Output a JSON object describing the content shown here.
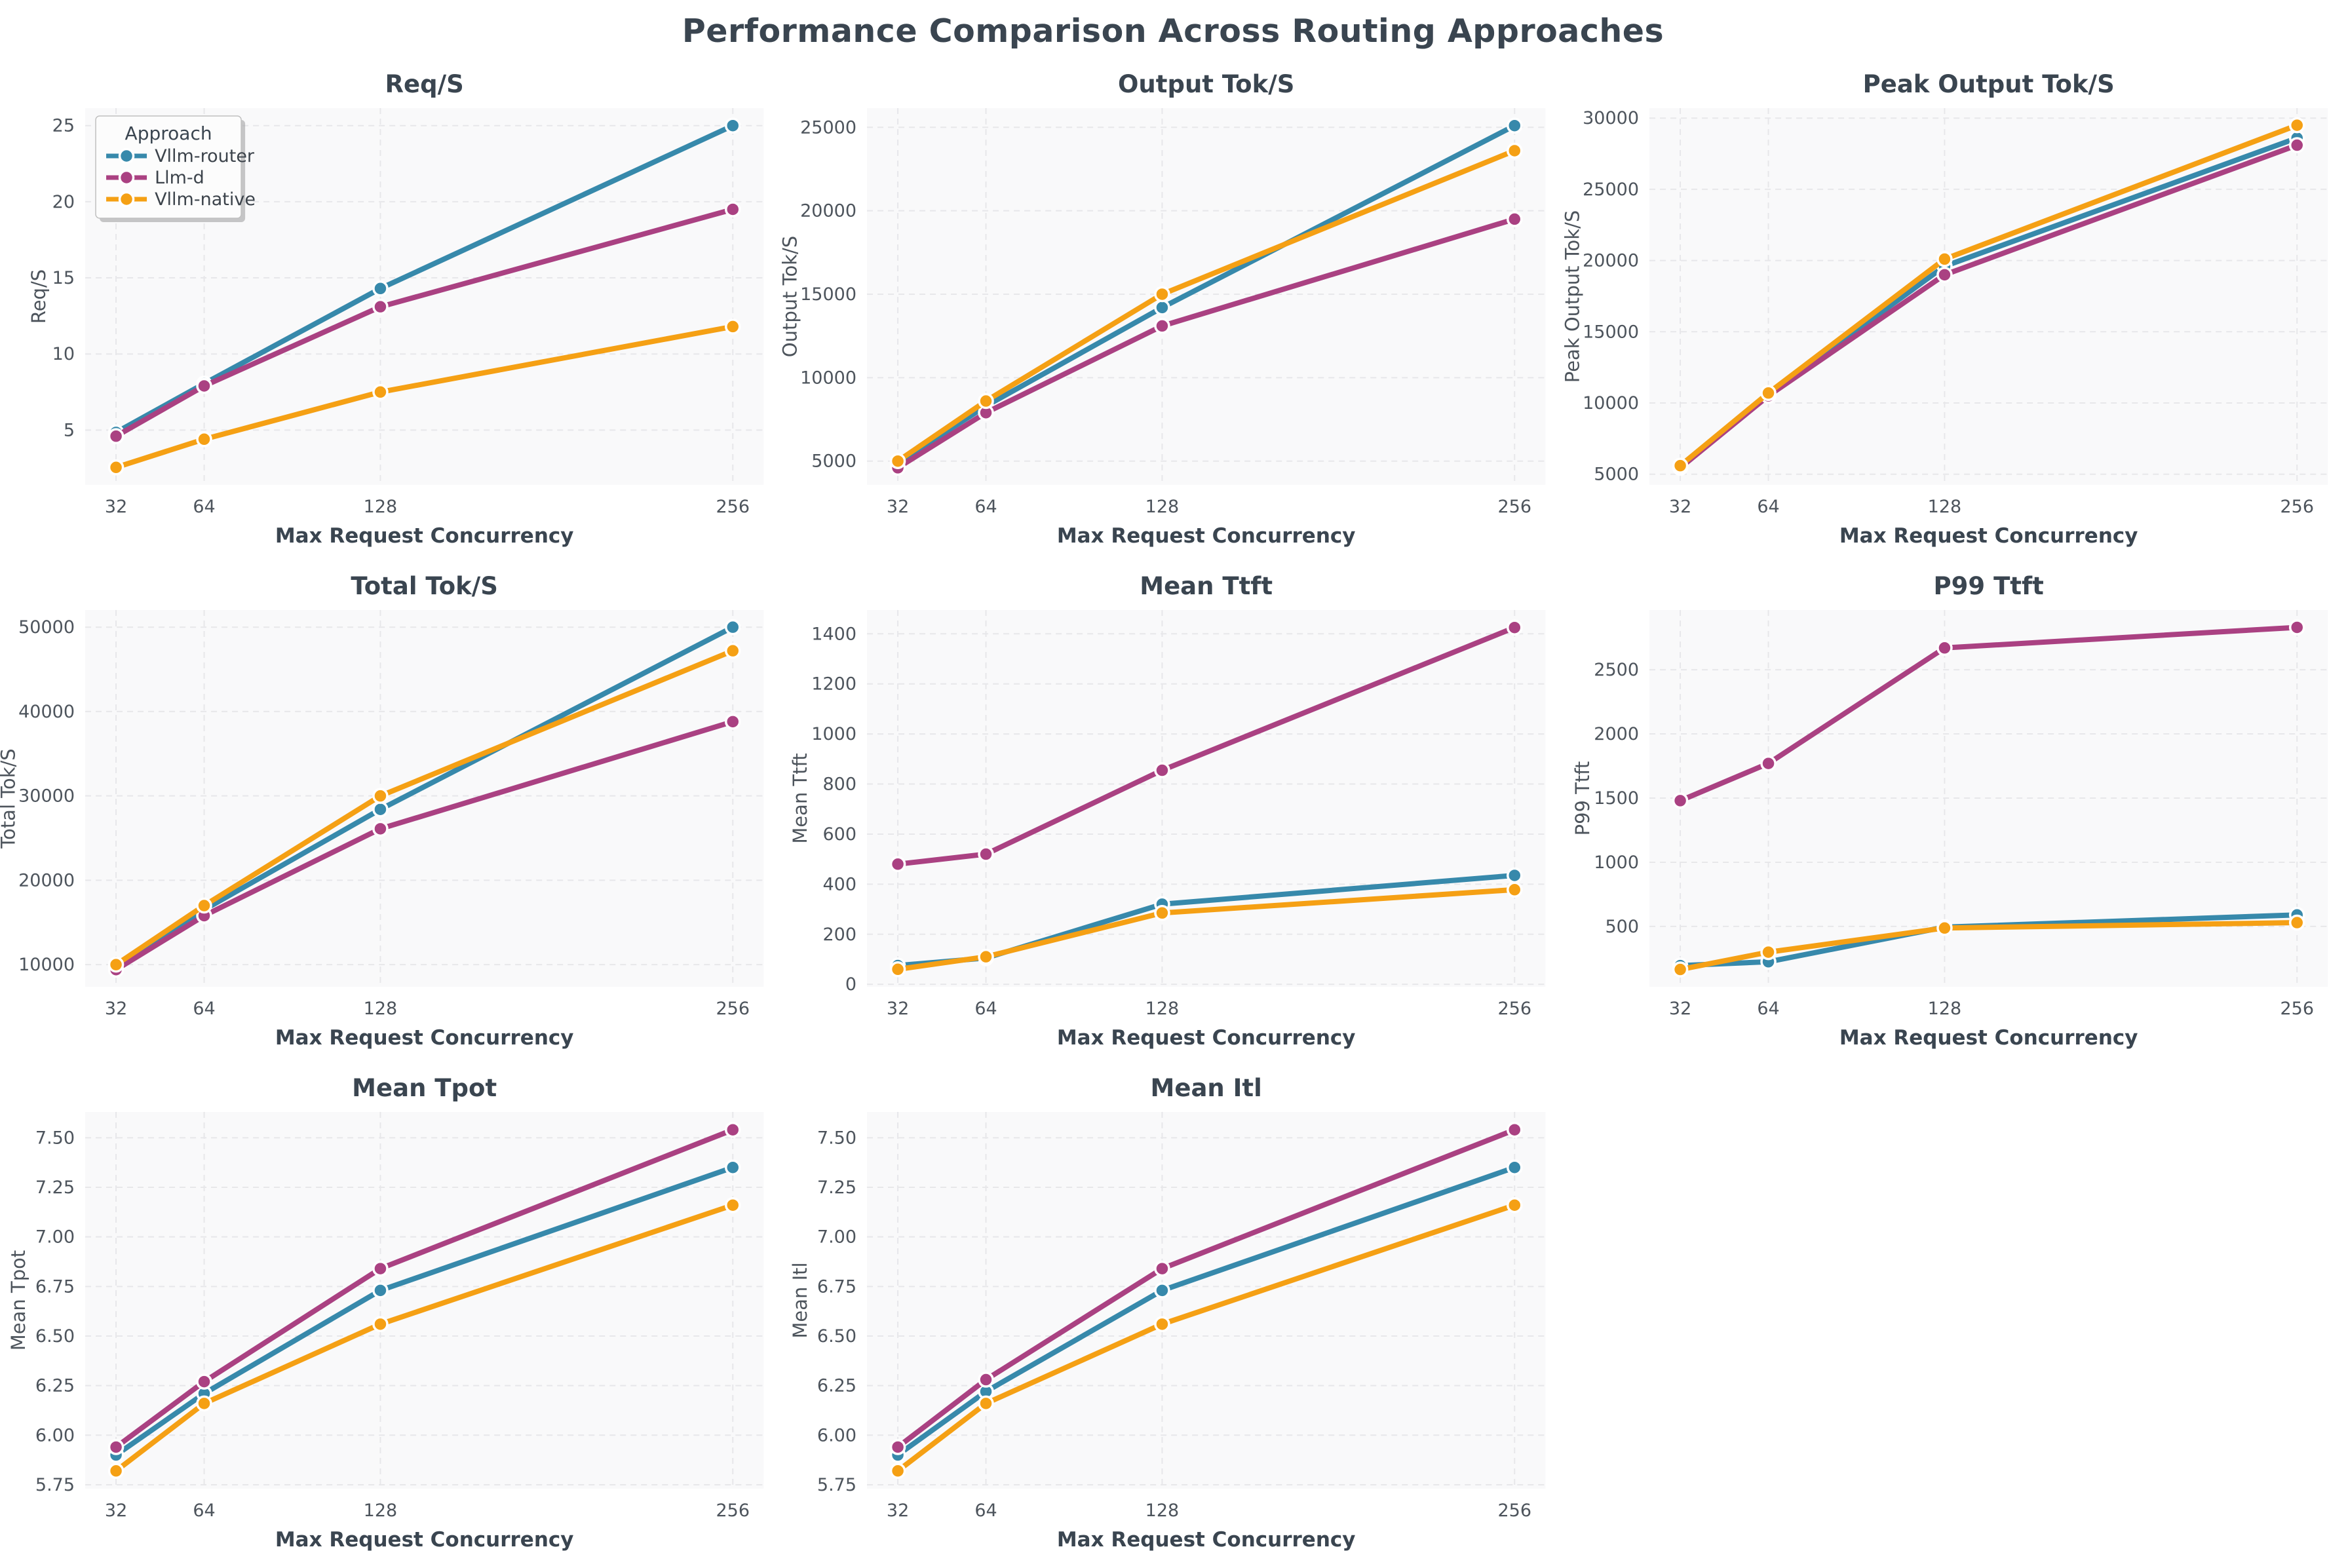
{
  "title": "Performance Comparison Across Routing Approaches",
  "x_axis": {
    "label": "Max Request Concurrency",
    "ticks": [
      32,
      64,
      128,
      256
    ],
    "lim": [
      20.8,
      267.2
    ]
  },
  "legend": {
    "title": "Approach",
    "entries": [
      "Vllm-router",
      "Llm-d",
      "Vllm-native"
    ]
  },
  "palette": {
    "vllm_router": "#3789AB",
    "llm_d": "#AA4182",
    "vllm_native": "#F5A014"
  },
  "style_colors": {
    "title_text": "#3A4550",
    "tick_text": "#4D545C",
    "plot_bg": "#F9F9FA",
    "grid": "#E7E7EA",
    "legend_bg": "#FCFCFC",
    "legend_border": "#C0C0C0",
    "legend_shadow": "#9A9A9A"
  },
  "chart_data": [
    {
      "type": "line",
      "slug": "req-s",
      "title": "Req/S",
      "ylabel": "Req/S",
      "x": [
        32,
        64,
        128,
        256
      ],
      "series": [
        {
          "name": "Vllm-router",
          "color": "vllm_router",
          "values": [
            4.85,
            8.05,
            14.3,
            25.0
          ]
        },
        {
          "name": "Llm-d",
          "color": "llm_d",
          "values": [
            4.6,
            7.9,
            13.1,
            19.5
          ]
        },
        {
          "name": "Vllm-native",
          "color": "vllm_native",
          "values": [
            2.55,
            4.4,
            7.5,
            11.8
          ]
        }
      ],
      "yticks": [
        5,
        10,
        15,
        20,
        25
      ],
      "ylim": [
        1.4,
        26.15
      ],
      "tick_decimals": 0,
      "show_legend": true
    },
    {
      "type": "line",
      "slug": "output-tok-s",
      "title": "Output Tok/S",
      "ylabel": "Output Tok/S",
      "x": [
        32,
        64,
        128,
        256
      ],
      "series": [
        {
          "name": "Vllm-router",
          "color": "vllm_router",
          "values": [
            4900,
            8300,
            14200,
            25100
          ]
        },
        {
          "name": "Llm-d",
          "color": "llm_d",
          "values": [
            4600,
            7900,
            13100,
            19500
          ]
        },
        {
          "name": "Vllm-native",
          "color": "vllm_native",
          "values": [
            5000,
            8600,
            15000,
            23600
          ]
        }
      ],
      "yticks": [
        5000,
        10000,
        15000,
        20000,
        25000
      ],
      "ylim": [
        3575,
        26150
      ],
      "tick_decimals": 0,
      "show_legend": false
    },
    {
      "type": "line",
      "slug": "peak-output-tok-s",
      "title": "Peak Output Tok/S",
      "ylabel": "Peak Output Tok/S",
      "x": [
        32,
        64,
        128,
        256
      ],
      "series": [
        {
          "name": "Vllm-router",
          "color": "vllm_router",
          "values": [
            5500,
            10600,
            19600,
            28600
          ]
        },
        {
          "name": "Llm-d",
          "color": "llm_d",
          "values": [
            5450,
            10500,
            19000,
            28100
          ]
        },
        {
          "name": "Vllm-native",
          "color": "vllm_native",
          "values": [
            5600,
            10700,
            20100,
            29500
          ]
        }
      ],
      "yticks": [
        5000,
        10000,
        15000,
        20000,
        25000,
        30000
      ],
      "ylim": [
        4250,
        30700
      ],
      "tick_decimals": 0,
      "show_legend": false
    },
    {
      "type": "line",
      "slug": "total-tok-s",
      "title": "Total Tok/S",
      "ylabel": "Total Tok/S",
      "x": [
        32,
        64,
        128,
        256
      ],
      "series": [
        {
          "name": "Vllm-router",
          "color": "vllm_router",
          "values": [
            9800,
            16500,
            28400,
            50000
          ]
        },
        {
          "name": "Llm-d",
          "color": "llm_d",
          "values": [
            9400,
            15800,
            26100,
            38800
          ]
        },
        {
          "name": "Vllm-native",
          "color": "vllm_native",
          "values": [
            10000,
            17000,
            30000,
            47200
          ]
        }
      ],
      "yticks": [
        10000,
        20000,
        30000,
        40000,
        50000
      ],
      "ylim": [
        7370,
        52030
      ],
      "tick_decimals": 0,
      "show_legend": false
    },
    {
      "type": "line",
      "slug": "mean-ttft",
      "title": "Mean Ttft",
      "ylabel": "Mean Ttft",
      "x": [
        32,
        64,
        128,
        256
      ],
      "series": [
        {
          "name": "Vllm-router",
          "color": "vllm_router",
          "values": [
            75,
            105,
            320,
            435
          ]
        },
        {
          "name": "Llm-d",
          "color": "llm_d",
          "values": [
            480,
            520,
            855,
            1425
          ]
        },
        {
          "name": "Vllm-native",
          "color": "vllm_native",
          "values": [
            60,
            110,
            285,
            378
          ]
        }
      ],
      "yticks": [
        0,
        200,
        400,
        600,
        800,
        1000,
        1200,
        1400
      ],
      "ylim": [
        -10,
        1495
      ],
      "tick_decimals": 0,
      "show_legend": false
    },
    {
      "type": "line",
      "slug": "p99-ttft",
      "title": "P99 Ttft",
      "ylabel": "P99 Ttft",
      "x": [
        32,
        64,
        128,
        256
      ],
      "series": [
        {
          "name": "Vllm-router",
          "color": "vllm_router",
          "values": [
            195,
            225,
            495,
            590
          ]
        },
        {
          "name": "Llm-d",
          "color": "llm_d",
          "values": [
            1480,
            1770,
            2670,
            2830
          ]
        },
        {
          "name": "Vllm-native",
          "color": "vllm_native",
          "values": [
            165,
            300,
            488,
            530
          ]
        }
      ],
      "yticks": [
        500,
        1000,
        1500,
        2000,
        2500
      ],
      "ylim": [
        30,
        2965
      ],
      "tick_decimals": 0,
      "show_legend": false
    },
    {
      "type": "line",
      "slug": "mean-tpot",
      "title": "Mean Tpot",
      "ylabel": "Mean Tpot",
      "x": [
        32,
        64,
        128,
        256
      ],
      "series": [
        {
          "name": "Vllm-router",
          "color": "vllm_router",
          "values": [
            5.9,
            6.21,
            6.73,
            7.35
          ]
        },
        {
          "name": "Llm-d",
          "color": "llm_d",
          "values": [
            5.94,
            6.27,
            6.84,
            7.54
          ]
        },
        {
          "name": "Vllm-native",
          "color": "vllm_native",
          "values": [
            5.82,
            6.16,
            6.56,
            7.16
          ]
        }
      ],
      "yticks": [
        5.75,
        6.0,
        6.25,
        6.5,
        6.75,
        7.0,
        7.25,
        7.5
      ],
      "ylim": [
        5.73,
        7.63
      ],
      "tick_decimals": 2,
      "show_legend": false
    },
    {
      "type": "line",
      "slug": "mean-itl",
      "title": "Mean Itl",
      "ylabel": "Mean Itl",
      "x": [
        32,
        64,
        128,
        256
      ],
      "series": [
        {
          "name": "Vllm-router",
          "color": "vllm_router",
          "values": [
            5.9,
            6.22,
            6.73,
            7.35
          ]
        },
        {
          "name": "Llm-d",
          "color": "llm_d",
          "values": [
            5.94,
            6.28,
            6.84,
            7.54
          ]
        },
        {
          "name": "Vllm-native",
          "color": "vllm_native",
          "values": [
            5.82,
            6.16,
            6.56,
            7.16
          ]
        }
      ],
      "yticks": [
        5.75,
        6.0,
        6.25,
        6.5,
        6.75,
        7.0,
        7.25,
        7.5
      ],
      "ylim": [
        5.73,
        7.63
      ],
      "tick_decimals": 2,
      "show_legend": false
    }
  ]
}
